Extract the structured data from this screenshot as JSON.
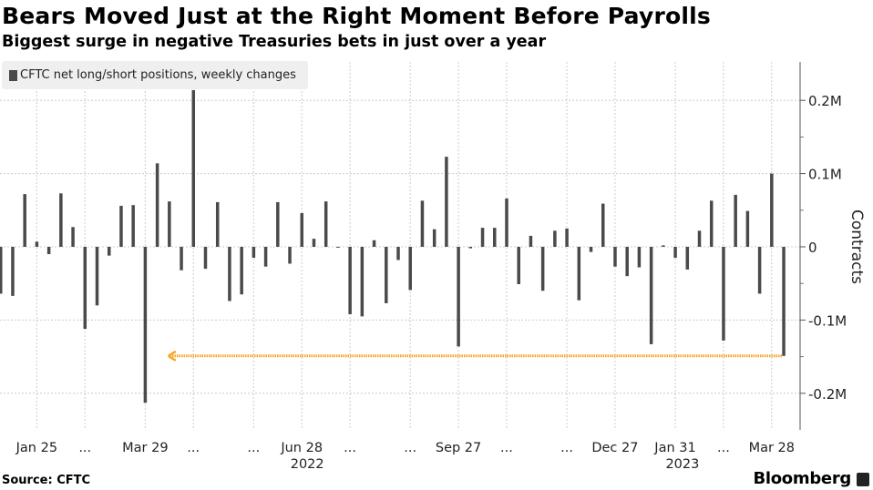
{
  "title": "Bears Moved Just at the Right Moment Before Payrolls",
  "subtitle": "Biggest surge in negative Treasuries bets in just over a year",
  "source": "Source: CFTC",
  "brand": "Bloomberg",
  "colors": {
    "bar": "#4a4a4a",
    "highlight": "#f5a623",
    "grid": "#cccccc"
  },
  "chart_data": {
    "type": "bar",
    "title": "Bears Moved Just at the Right Moment Before Payrolls",
    "subtitle": "Biggest surge in negative Treasuries bets in just over a year",
    "legend": {
      "position": "top-left",
      "entries": [
        "CFTC net long/short positions, weekly changes"
      ]
    },
    "ylabel": "Contracts",
    "ylim": [
      -0.25,
      0.25
    ],
    "yunit": "M",
    "grid": true,
    "yticks": [
      {
        "value": 0.2,
        "label": "0.2M"
      },
      {
        "value": 0.1,
        "label": "0.1M"
      },
      {
        "value": 0,
        "label": "0"
      },
      {
        "value": -0.1,
        "label": "-0.1M"
      },
      {
        "value": -0.2,
        "label": "-0.2M"
      }
    ],
    "xticks": [
      {
        "index": 3,
        "label": "Jan 25"
      },
      {
        "index": 7,
        "label": "..."
      },
      {
        "index": 12,
        "label": "Mar 29"
      },
      {
        "index": 16,
        "label": "..."
      },
      {
        "index": 21,
        "label": "..."
      },
      {
        "index": 25,
        "label": "Jun 28"
      },
      {
        "index": 29,
        "label": "..."
      },
      {
        "index": 34,
        "label": "..."
      },
      {
        "index": 38,
        "label": "Sep 27"
      },
      {
        "index": 42,
        "label": "..."
      },
      {
        "index": 47,
        "label": "..."
      },
      {
        "index": 51,
        "label": "Dec 27"
      },
      {
        "index": 56,
        "label": "Jan 31"
      },
      {
        "index": 60,
        "label": "..."
      },
      {
        "index": 64,
        "label": "Mar 28"
      }
    ],
    "year_labels": [
      {
        "index": 25,
        "label": "2022"
      },
      {
        "index": 60,
        "label": "2023"
      }
    ],
    "first_week": "2022-01-04",
    "last_week": "2023-04-04",
    "frequency": "weekly",
    "series": [
      {
        "name": "CFTC net long/short positions, weekly changes",
        "values": [
          -0.064,
          -0.067,
          0.072,
          0.007,
          -0.01,
          0.073,
          0.027,
          -0.112,
          -0.08,
          -0.012,
          0.056,
          0.057,
          -0.213,
          0.114,
          0.062,
          -0.032,
          0.214,
          -0.03,
          0.061,
          -0.074,
          -0.065,
          -0.015,
          -0.027,
          0.061,
          -0.023,
          0.046,
          0.011,
          0.062,
          -0.001,
          -0.092,
          -0.095,
          0.009,
          -0.077,
          -0.018,
          -0.059,
          0.063,
          0.024,
          0.123,
          -0.136,
          -0.002,
          0.026,
          0.026,
          0.066,
          -0.051,
          0.015,
          -0.06,
          0.022,
          0.025,
          -0.073,
          -0.007,
          0.059,
          -0.027,
          -0.04,
          -0.028,
          -0.133,
          0.002,
          -0.015,
          -0.031,
          0.022,
          0.063,
          -0.128,
          0.071,
          0.049,
          -0.064,
          0.1,
          -0.149
        ]
      }
    ],
    "annotations": [
      {
        "type": "arrow",
        "value": -0.149,
        "from_index": 65,
        "to_index": 14,
        "color": "#f5a623"
      }
    ]
  }
}
